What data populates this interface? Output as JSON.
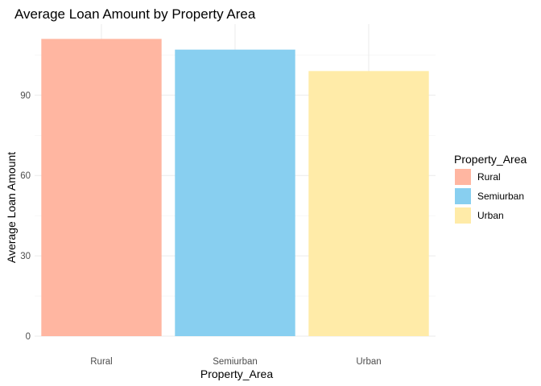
{
  "chart_data": {
    "type": "bar",
    "title": "Average Loan Amount by Property Area",
    "xlabel": "Property_Area",
    "ylabel": "Average Loan Amount",
    "categories": [
      "Rural",
      "Semiurban",
      "Urban"
    ],
    "values": [
      111,
      107,
      99
    ],
    "colors": [
      "#FFB6A1",
      "#88CFF0",
      "#FFEBA8"
    ],
    "ylim": [
      0,
      115
    ],
    "yticks": [
      0,
      30,
      60,
      90
    ],
    "grid": true,
    "legend": {
      "title": "Property_Area",
      "position": "right",
      "entries": [
        "Rural",
        "Semiurban",
        "Urban"
      ]
    }
  }
}
